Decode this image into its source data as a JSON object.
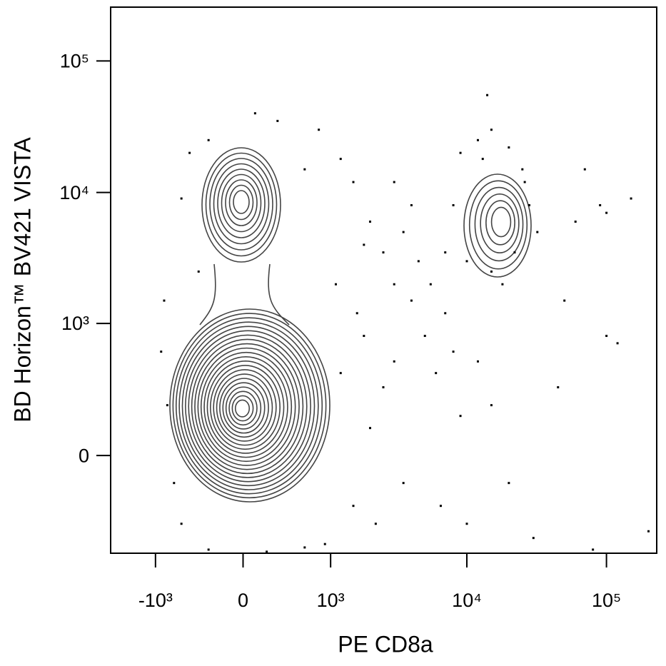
{
  "chart_data": {
    "type": "scatter",
    "xlabel": "PE  CD8a",
    "ylabel": "BD Horizon™ BV421   VISTA",
    "xscale": "biexponential",
    "yscale": "biexponential",
    "xlim": [
      -2190,
      229000
    ],
    "ylim": [
      -535,
      256600
    ],
    "xticks": [
      {
        "value": -1000,
        "label": "-10³"
      },
      0,
      {
        "value": 1000,
        "label": "10³"
      },
      {
        "value": 10000,
        "label": "10⁴"
      },
      {
        "value": 100000,
        "label": "10⁵"
      }
    ],
    "yticks": [
      0,
      {
        "value": 1000,
        "label": "10³"
      },
      {
        "value": 10000,
        "label": "10⁴"
      },
      {
        "value": 100000,
        "label": "10⁵"
      }
    ],
    "color": "#000000",
    "x": [
      -800,
      -600,
      -900,
      1200,
      1500,
      2000,
      2500,
      1800,
      900,
      -300,
      200,
      600,
      -700,
      1600,
      3000,
      3500,
      2200,
      -850,
      -400,
      1100,
      -300,
      300,
      -500,
      800,
      1200,
      1500,
      2000,
      -600,
      100,
      600,
      2500,
      3000,
      1800,
      4000,
      5000,
      6000,
      7000,
      4500,
      3500,
      5500,
      8000,
      6500,
      9000,
      4000,
      3000,
      7000,
      10000,
      12000,
      15000,
      20000,
      9000,
      12000,
      15000,
      20000,
      25000,
      28000,
      22000,
      15000,
      10000,
      8000,
      13000,
      26000,
      18000,
      32000,
      14000,
      60000,
      90000,
      100000,
      150000,
      70000,
      50000,
      100000,
      80000,
      200000,
      45000,
      30000,
      120000
    ],
    "y": [
      200,
      -300,
      600,
      400,
      -200,
      100,
      300,
      800,
      -450,
      -500,
      -520,
      -480,
      -100,
      1200,
      500,
      -100,
      -300,
      1500,
      2500,
      2000,
      25000,
      35000,
      20000,
      30000,
      18000,
      12000,
      6000,
      9000,
      40000,
      15000,
      3500,
      2000,
      4000,
      1500,
      800,
      400,
      1200,
      3000,
      5000,
      2000,
      600,
      -200,
      150,
      8000,
      12000,
      3500,
      -300,
      500,
      200,
      -100,
      20000,
      25000,
      30000,
      22000,
      15000,
      8000,
      3500,
      2500,
      3000,
      8000,
      18000,
      12000,
      2000,
      5000,
      55000,
      6000,
      8000,
      7000,
      9000,
      15000,
      1500,
      800,
      -500,
      -350,
      300,
      -400,
      700
    ]
  }
}
